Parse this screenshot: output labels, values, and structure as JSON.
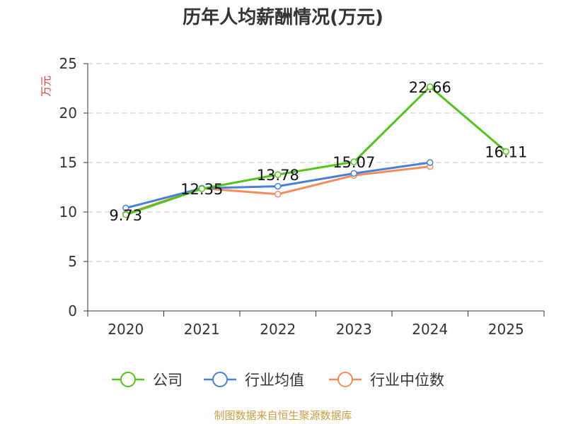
{
  "chart_data": {
    "type": "line",
    "title": "历年人均薪酬情况(万元)",
    "ylabel": "万元",
    "xlabel": "",
    "categories": [
      "2020",
      "2021",
      "2022",
      "2023",
      "2024",
      "2025"
    ],
    "ylim": [
      0,
      25
    ],
    "yticks": [
      0,
      5,
      10,
      15,
      20,
      25
    ],
    "grid": true,
    "series": [
      {
        "name": "公司",
        "color": "#52c41a",
        "values": [
          9.73,
          12.35,
          13.78,
          15.07,
          22.66,
          16.11
        ]
      },
      {
        "name": "行业均值",
        "color": "#4a7fd8",
        "values": [
          10.4,
          12.4,
          12.6,
          13.9,
          15.0,
          null
        ]
      },
      {
        "name": "行业中位数",
        "color": "#f28c5c",
        "values": [
          9.8,
          12.4,
          11.8,
          13.7,
          14.6,
          null
        ]
      }
    ],
    "data_labels": [
      {
        "series": 0,
        "index": 0,
        "text": "9.73"
      },
      {
        "series": 0,
        "index": 1,
        "text": "12.35"
      },
      {
        "series": 0,
        "index": 2,
        "text": "13.78"
      },
      {
        "series": 0,
        "index": 3,
        "text": "15.07"
      },
      {
        "series": 0,
        "index": 4,
        "text": "22.66"
      },
      {
        "series": 0,
        "index": 5,
        "text": "16.11"
      }
    ],
    "legend_position": "bottom-center",
    "ylabel_color": "#e03c3c"
  },
  "footer": {
    "source_text": "制图数据来自恒生聚源数据库",
    "source_color": "#c8a040"
  }
}
